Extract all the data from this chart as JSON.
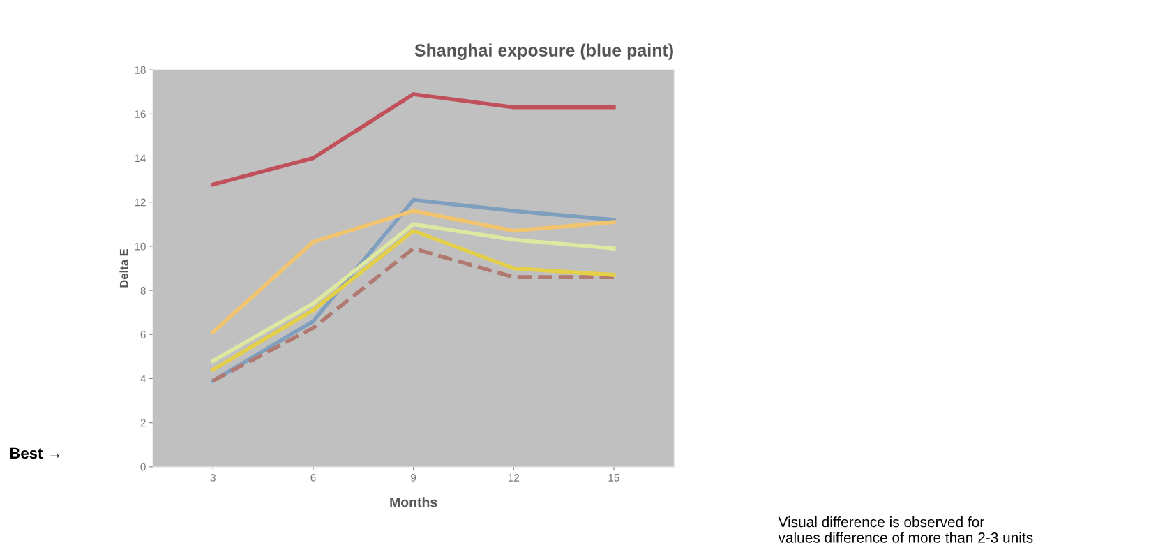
{
  "chart_data": {
    "type": "line",
    "title": "Shanghai exposure (blue paint)",
    "xlabel": "Months",
    "ylabel": "Delta E",
    "categories": [
      "3",
      "6",
      "9",
      "12",
      "15"
    ],
    "series": [
      {
        "color": "#7f9fbf",
        "values": [
          3.9,
          6.6,
          12.1,
          11.6,
          11.2
        ]
      },
      {
        "color": "#f2c46e",
        "values": [
          6.1,
          10.2,
          11.6,
          10.7,
          11.1
        ]
      },
      {
        "color": "#dfe8a0",
        "values": [
          4.8,
          7.4,
          11.0,
          10.3,
          9.9
        ]
      },
      {
        "color": "#c0505a",
        "values": [
          12.8,
          14.0,
          16.9,
          16.3,
          16.3
        ]
      },
      {
        "color": "#b07a70",
        "values": [
          3.9,
          6.3,
          9.9,
          8.6,
          8.6
        ],
        "line_style": "dashed"
      },
      {
        "color": "#e3cf48",
        "values": [
          4.4,
          7.1,
          10.7,
          9.0,
          8.7
        ]
      }
    ],
    "ylim": [
      0,
      18
    ],
    "yticks": [
      0,
      2,
      4,
      6,
      8,
      10,
      12,
      14,
      16,
      18
    ],
    "grid": false,
    "annotations": [
      "Best →",
      "Visual difference is observed for\nvalues difference of more than 2-3 units"
    ]
  }
}
